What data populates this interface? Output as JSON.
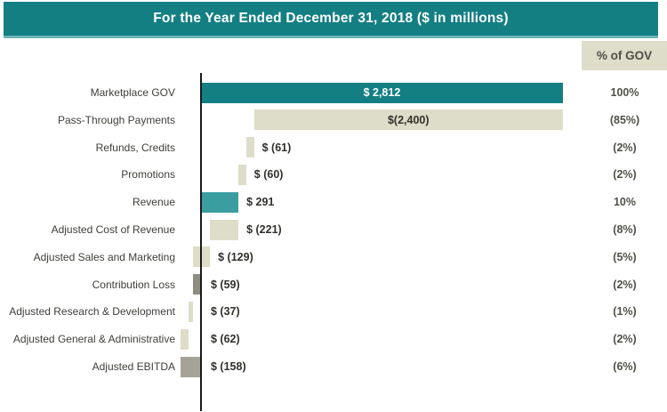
{
  "title": "For the Year Ended December 31, 2018 ($ in millions)",
  "pct_header": "% of GOV",
  "colors": {
    "title_bg": "#137F83",
    "title_text": "#FFFFFF",
    "header_bg": "#DEDDC9",
    "axis": "#1A1A1A",
    "teal_dark": "#137F83",
    "teal_light": "#3A9EA1",
    "beige": "#DEDDC9",
    "gray_dark": "#8F8D82",
    "gray_medium": "#A5A398"
  },
  "chart_data": {
    "type": "bar",
    "subtype": "waterfall",
    "orientation": "horizontal",
    "title": "For the Year Ended December 31, 2018 ($ in millions)",
    "unit": "$ in millions",
    "x_axis": {
      "zero_baseline": true,
      "gridlines": false,
      "tick_labels": false
    },
    "right_column_header": "% of GOV",
    "categories": [
      "Marketplace GOV",
      "Pass-Through Payments",
      "Refunds, Credits",
      "Promotions",
      "Revenue",
      "Adjusted Cost of Revenue",
      "Adjusted Sales and Marketing",
      "Contribution Loss",
      "Adjusted Research & Development",
      "Adjusted General & Administrative",
      "Adjusted EBITDA"
    ],
    "values": [
      2812,
      -2400,
      -61,
      -60,
      291,
      -221,
      -129,
      -59,
      -37,
      -62,
      -158
    ],
    "rows": [
      {
        "label": "Marketplace GOV",
        "value": 2812,
        "value_label": "$ 2,812",
        "pct": "100%",
        "seg": [
          0,
          2812
        ],
        "color": "teal_dark",
        "label_placement": "inside",
        "label_color": "#FFFFFF"
      },
      {
        "label": "Pass-Through Payments",
        "value": -2400,
        "value_label": "$(2,400)",
        "pct": "(85%)",
        "seg": [
          412,
          2812
        ],
        "color": "beige",
        "label_placement": "inside",
        "label_color": "#30302C"
      },
      {
        "label": "Refunds, Credits",
        "value": -61,
        "value_label": "$ (61)",
        "pct": "(2%)",
        "seg": [
          351,
          412
        ],
        "color": "beige",
        "label_placement": "outside"
      },
      {
        "label": "Promotions",
        "value": -60,
        "value_label": "$ (60)",
        "pct": "(2%)",
        "seg": [
          291,
          351
        ],
        "color": "beige",
        "label_placement": "outside"
      },
      {
        "label": "Revenue",
        "value": 291,
        "value_label": "$ 291",
        "pct": "10%",
        "seg": [
          0,
          291
        ],
        "color": "teal_light",
        "label_placement": "outside"
      },
      {
        "label": "Adjusted Cost of Revenue",
        "value": -221,
        "value_label": "$ (221)",
        "pct": "(8%)",
        "seg": [
          70,
          291
        ],
        "color": "beige",
        "label_placement": "outside"
      },
      {
        "label": "Adjusted Sales and Marketing",
        "value": -129,
        "value_label": "$ (129)",
        "pct": "(5%)",
        "seg": [
          -59,
          70
        ],
        "color": "beige",
        "label_placement": "outside"
      },
      {
        "label": "Contribution Loss",
        "value": -59,
        "value_label": "$ (59)",
        "pct": "(2%)",
        "seg": [
          -59,
          0
        ],
        "color": "gray_dark",
        "label_placement": "outside"
      },
      {
        "label": "Adjusted Research & Development",
        "value": -37,
        "value_label": "$ (37)",
        "pct": "(1%)",
        "seg": [
          -96,
          -59
        ],
        "color": "beige",
        "label_placement": "outside"
      },
      {
        "label": "Adjusted General & Administrative",
        "value": -62,
        "value_label": "$ (62)",
        "pct": "(2%)",
        "seg": [
          -158,
          -96
        ],
        "color": "beige",
        "label_placement": "outside"
      },
      {
        "label": "Adjusted EBITDA",
        "value": -158,
        "value_label": "$ (158)",
        "pct": "(6%)",
        "seg": [
          -158,
          0
        ],
        "color": "gray_medium",
        "label_placement": "outside"
      }
    ]
  }
}
